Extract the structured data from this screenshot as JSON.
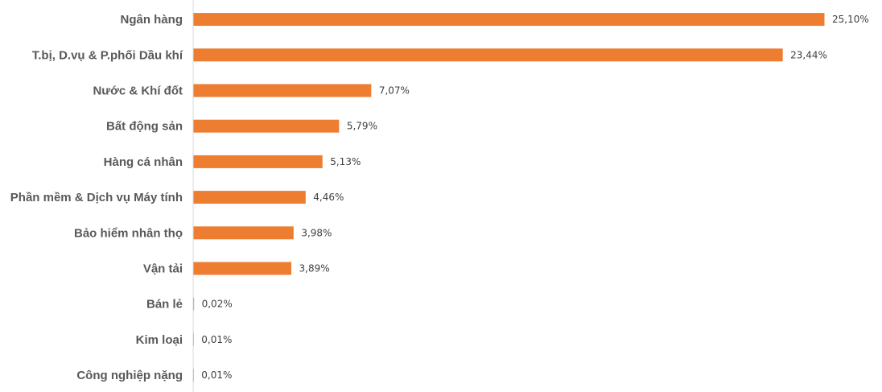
{
  "chart_data": {
    "type": "bar",
    "orientation": "horizontal",
    "categories": [
      "Ngân hàng",
      "T.bị, D.vụ & P.phối Dầu khí",
      "Nước & Khí đốt",
      "Bất động sản",
      "Hàng cá nhân",
      "Phần mềm & Dịch vụ Máy tính",
      "Bảo hiểm nhân thọ",
      "Vận tải",
      "Bán lẻ",
      "Kim loại",
      "Công nghiệp nặng"
    ],
    "values": [
      25.1,
      23.44,
      7.07,
      5.79,
      5.13,
      4.46,
      3.98,
      3.89,
      0.02,
      0.01,
      0.01
    ],
    "value_labels": [
      "25,10%",
      "23,44%",
      "7,07%",
      "5,79%",
      "5,13%",
      "4,46%",
      "3,98%",
      "3,89%",
      "0,02%",
      "0,01%",
      "0,01%"
    ],
    "xlim": [
      0,
      28
    ],
    "grid": false,
    "legend": "none",
    "colors": {
      "bar": "#ED7D31",
      "axis": "#D9D9D9",
      "category_text": "#595959",
      "value_text": "#404040"
    }
  }
}
